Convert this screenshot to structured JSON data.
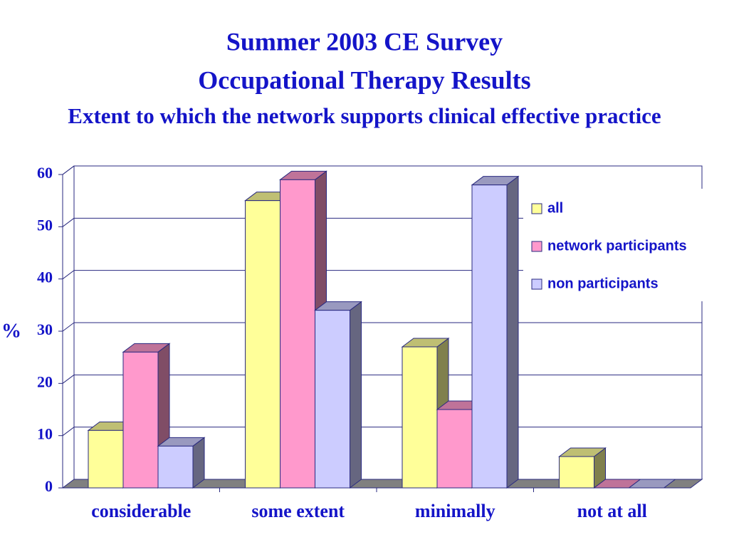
{
  "chart_data": {
    "type": "bar3d",
    "title": "Summer 2003 CE Survey",
    "title_line2": "Occupational Therapy Results",
    "subtitle": "Extent to which the network supports clinical effective practice",
    "y_label": "%",
    "categories": [
      "considerable",
      "some extent",
      "minimally",
      "not at all"
    ],
    "series": [
      {
        "name": "all",
        "color": "#ffff99",
        "values": [
          11,
          55,
          27,
          6
        ]
      },
      {
        "name": "network participants",
        "color": "#ff99cc",
        "values": [
          26,
          59,
          15,
          0
        ]
      },
      {
        "name": "non participants",
        "color": "#ccccff",
        "values": [
          8,
          34,
          58,
          0
        ]
      }
    ],
    "ylim": [
      0,
      60
    ],
    "yticks": [
      0,
      10,
      20,
      30,
      40,
      50,
      60
    ],
    "grid": true,
    "legend": "right"
  }
}
